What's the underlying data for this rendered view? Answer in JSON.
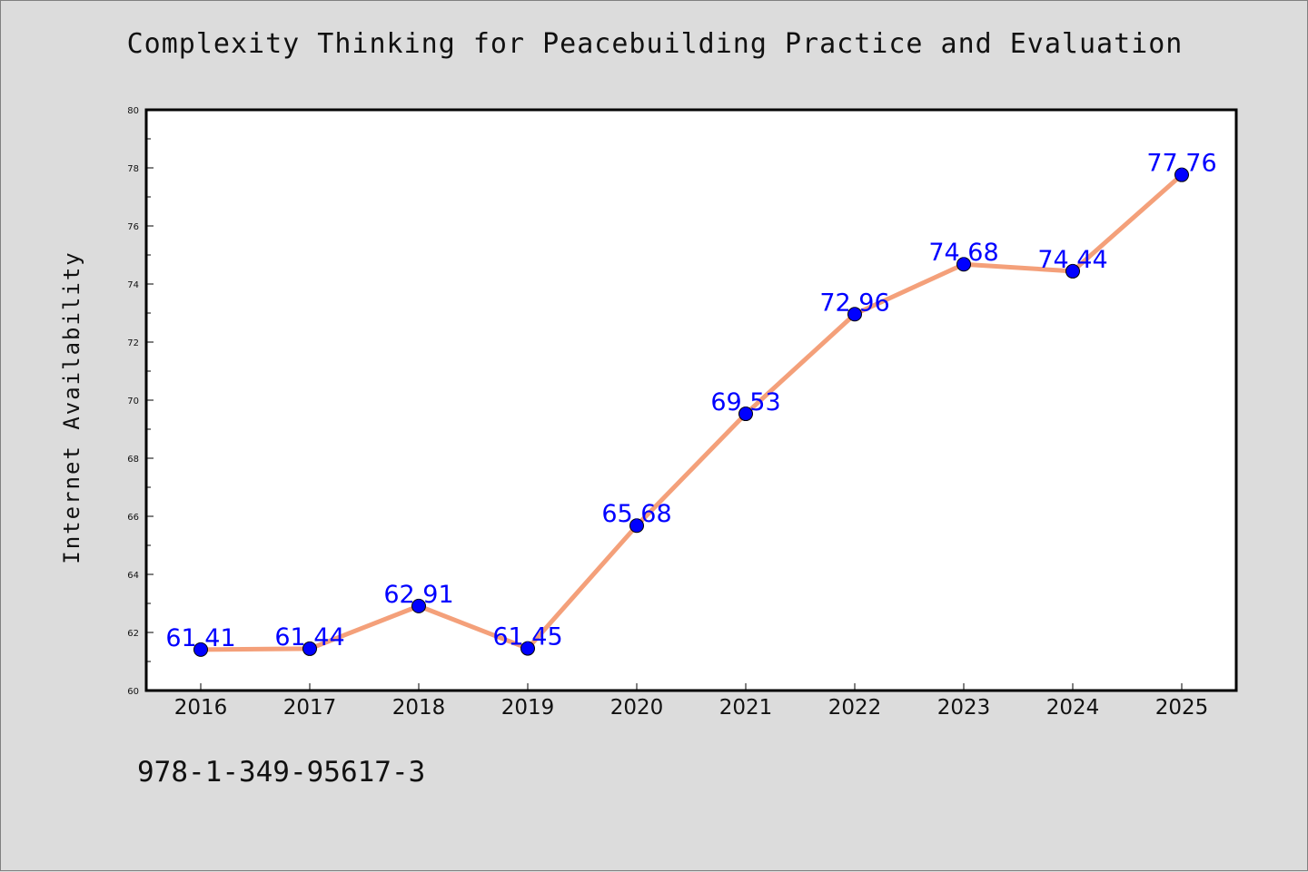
{
  "title": "Complexity Thinking for Peacebuilding Practice and Evaluation",
  "isbn": "978-1-349-95617-3",
  "colors": {
    "background": "#dcdcdc",
    "plot_background": "#ffffff",
    "line": "#f4a07a",
    "marker": "#0000ff",
    "label": "#0000ff"
  },
  "chart_data": {
    "type": "line",
    "title": "Complexity Thinking for Peacebuilding Practice and Evaluation",
    "xlabel": "",
    "ylabel": "Internet Availability",
    "x": [
      "2016",
      "2017",
      "2018",
      "2019",
      "2020",
      "2021",
      "2022",
      "2023",
      "2024",
      "2025"
    ],
    "series": [
      {
        "values": [
          61.41,
          61.44,
          62.91,
          61.45,
          65.68,
          69.53,
          72.96,
          74.68,
          74.44,
          77.76
        ],
        "labels": [
          "61.41",
          "61.44",
          "62.91",
          "61.45",
          "65.68",
          "69.53",
          "72.96",
          "74.68",
          "74.44",
          "77.76"
        ]
      }
    ],
    "ylim": [
      60,
      80
    ],
    "yticks": [
      "60",
      "62",
      "64",
      "66",
      "68",
      "70",
      "72",
      "74",
      "76",
      "78",
      "80"
    ],
    "grid": false,
    "legend": "none"
  }
}
